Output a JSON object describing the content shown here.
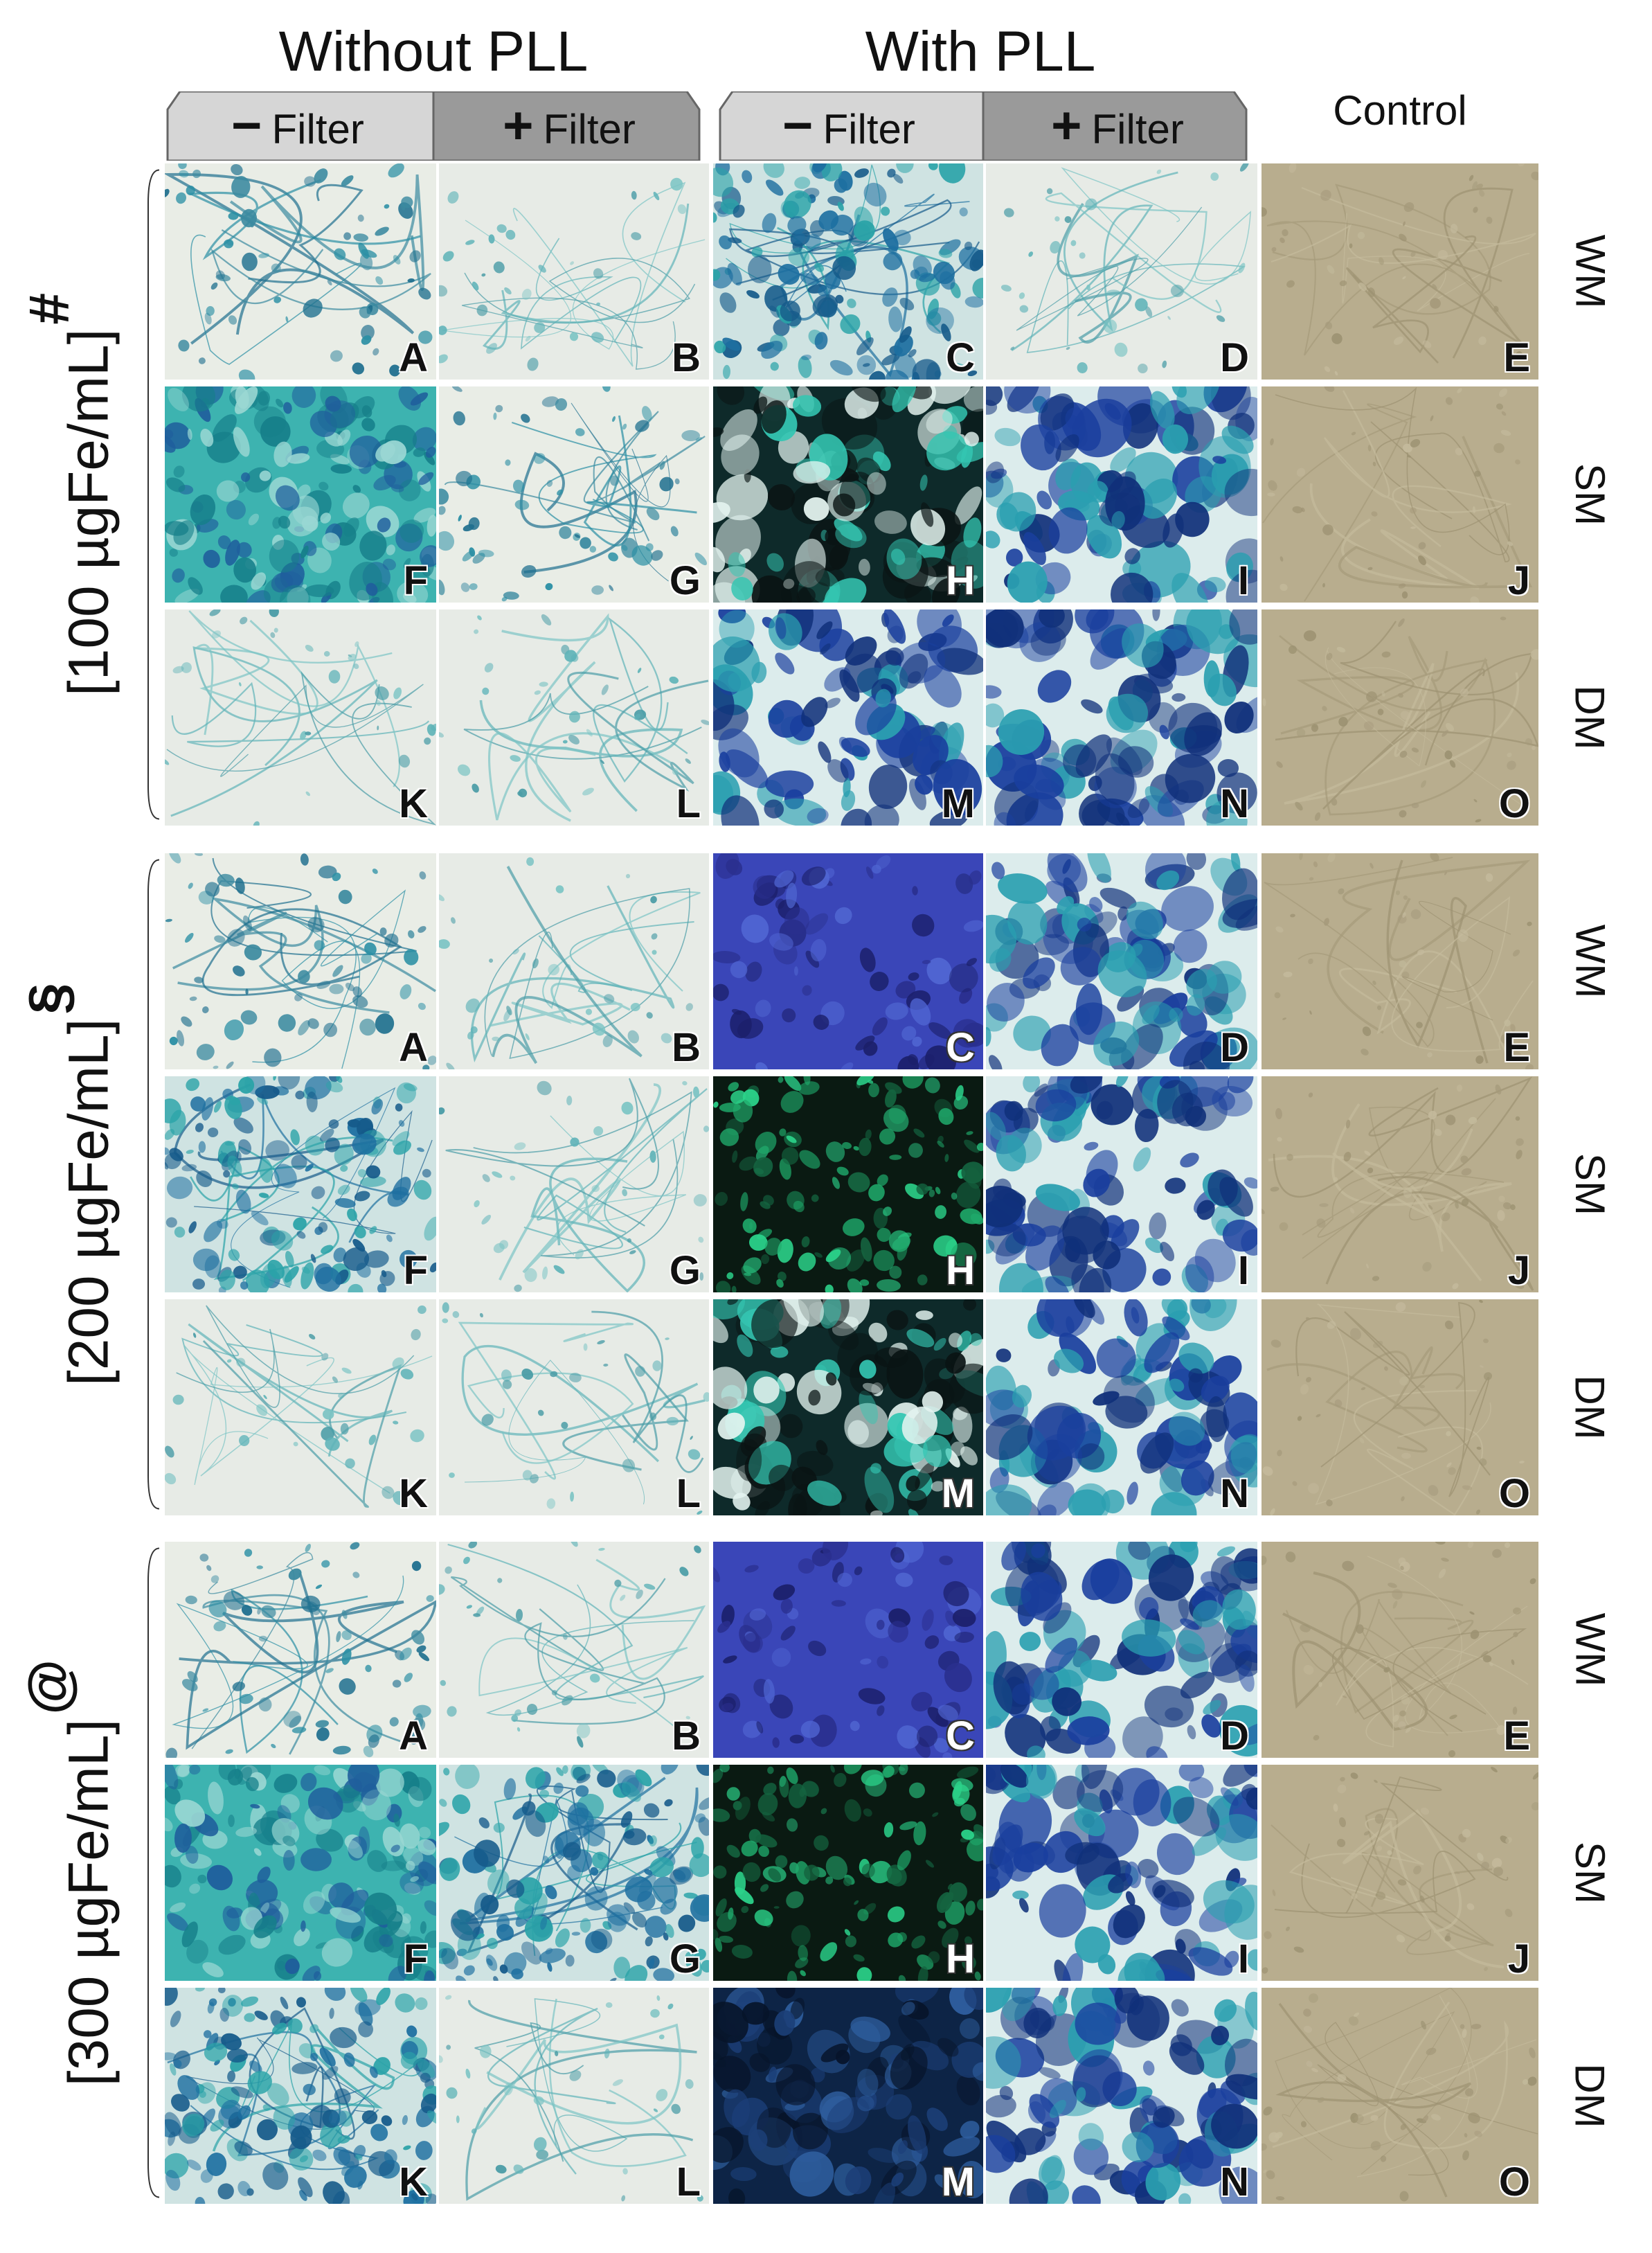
{
  "header": {
    "without_pll": "Without PLL",
    "with_pll": "With PLL",
    "minus_filter_sign": "−",
    "plus_filter_sign": "+",
    "filter_word": "Filter",
    "control": "Control"
  },
  "row_labels": [
    "WM",
    "SM",
    "DM"
  ],
  "panel_letters": [
    "A",
    "B",
    "C",
    "D",
    "E",
    "F",
    "G",
    "H",
    "I",
    "J",
    "K",
    "L",
    "M",
    "N",
    "O"
  ],
  "groups": [
    {
      "label": "[100 µgFe/mL]",
      "symbol": "#"
    },
    {
      "label": "[200 µgFe/mL]",
      "symbol": "§"
    },
    {
      "label": "[300 µgFe/mL]",
      "symbol": "@"
    }
  ],
  "colors": {
    "tab_minus": "#d6d6d6",
    "tab_plus": "#9a9a9a",
    "control_bg": "#b5a98a",
    "stain_light_bg": "#e6ece7",
    "prussian_blue": "#1d5f9e",
    "teal": "#1fa9a6",
    "deep_blue": "#2a3fa8",
    "green": "#1d8c5a"
  }
}
